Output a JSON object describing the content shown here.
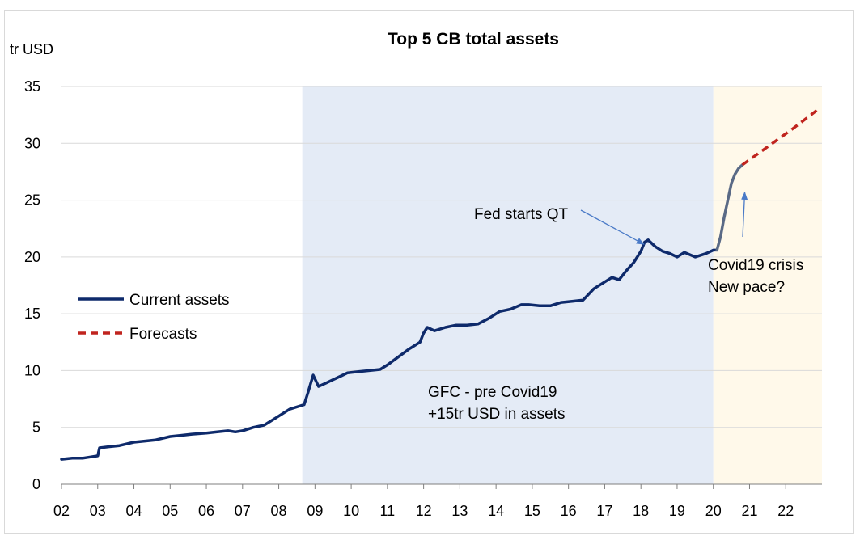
{
  "chart_data": {
    "type": "line",
    "title": "Top 5 CB total assets",
    "ylabel": "tr USD",
    "xlabel": "",
    "ylim": [
      0,
      35
    ],
    "yticks": [
      0,
      5,
      10,
      15,
      20,
      25,
      30,
      35
    ],
    "xlim": [
      2002,
      2023
    ],
    "xtick_labels": [
      "02",
      "03",
      "04",
      "05",
      "06",
      "07",
      "08",
      "09",
      "10",
      "11",
      "12",
      "13",
      "14",
      "15",
      "16",
      "17",
      "18",
      "19",
      "20",
      "21",
      "22"
    ],
    "grid": "horizontal",
    "legend_position": "left",
    "shaded_regions": [
      {
        "x_start": 2008.65,
        "x_end": 2020.0,
        "color": "#e4ebf6"
      },
      {
        "x_start": 2020.0,
        "x_end": 2023.0,
        "color": "#fff9ea"
      }
    ],
    "series": [
      {
        "name": "Current assets",
        "color": "#0e2a6b",
        "style": "solid",
        "points": [
          [
            2002.0,
            2.2
          ],
          [
            2002.3,
            2.3
          ],
          [
            2002.6,
            2.3
          ],
          [
            2002.8,
            2.4
          ],
          [
            2003.0,
            2.5
          ],
          [
            2003.05,
            3.2
          ],
          [
            2003.3,
            3.3
          ],
          [
            2003.6,
            3.4
          ],
          [
            2004.0,
            3.7
          ],
          [
            2004.3,
            3.8
          ],
          [
            2004.6,
            3.9
          ],
          [
            2005.0,
            4.2
          ],
          [
            2005.3,
            4.3
          ],
          [
            2005.6,
            4.4
          ],
          [
            2006.0,
            4.5
          ],
          [
            2006.3,
            4.6
          ],
          [
            2006.6,
            4.7
          ],
          [
            2006.8,
            4.6
          ],
          [
            2007.0,
            4.7
          ],
          [
            2007.3,
            5.0
          ],
          [
            2007.6,
            5.2
          ],
          [
            2008.0,
            6.0
          ],
          [
            2008.3,
            6.6
          ],
          [
            2008.6,
            6.9
          ],
          [
            2008.7,
            7.0
          ],
          [
            2008.8,
            8.0
          ],
          [
            2008.95,
            9.6
          ],
          [
            2009.1,
            8.6
          ],
          [
            2009.3,
            8.9
          ],
          [
            2009.5,
            9.2
          ],
          [
            2009.7,
            9.5
          ],
          [
            2009.9,
            9.8
          ],
          [
            2010.2,
            9.9
          ],
          [
            2010.5,
            10.0
          ],
          [
            2010.8,
            10.1
          ],
          [
            2011.0,
            10.5
          ],
          [
            2011.3,
            11.2
          ],
          [
            2011.6,
            11.9
          ],
          [
            2011.9,
            12.5
          ],
          [
            2012.0,
            13.3
          ],
          [
            2012.1,
            13.8
          ],
          [
            2012.3,
            13.5
          ],
          [
            2012.6,
            13.8
          ],
          [
            2012.9,
            14.0
          ],
          [
            2013.2,
            14.0
          ],
          [
            2013.5,
            14.1
          ],
          [
            2013.8,
            14.6
          ],
          [
            2014.1,
            15.2
          ],
          [
            2014.4,
            15.4
          ],
          [
            2014.7,
            15.8
          ],
          [
            2014.9,
            15.8
          ],
          [
            2015.2,
            15.7
          ],
          [
            2015.5,
            15.7
          ],
          [
            2015.8,
            16.0
          ],
          [
            2016.1,
            16.1
          ],
          [
            2016.4,
            16.2
          ],
          [
            2016.7,
            17.2
          ],
          [
            2017.0,
            17.8
          ],
          [
            2017.2,
            18.2
          ],
          [
            2017.4,
            18.0
          ],
          [
            2017.6,
            18.8
          ],
          [
            2017.8,
            19.5
          ],
          [
            2018.0,
            20.5
          ],
          [
            2018.1,
            21.3
          ],
          [
            2018.2,
            21.5
          ],
          [
            2018.4,
            20.9
          ],
          [
            2018.6,
            20.5
          ],
          [
            2018.8,
            20.3
          ],
          [
            2019.0,
            20.0
          ],
          [
            2019.2,
            20.4
          ],
          [
            2019.5,
            20.0
          ],
          [
            2019.8,
            20.3
          ],
          [
            2020.0,
            20.6
          ],
          [
            2020.1,
            20.6
          ]
        ]
      },
      {
        "name": "",
        "color": "#5a6a86",
        "style": "solid",
        "points": [
          [
            2020.1,
            20.6
          ],
          [
            2020.2,
            21.8
          ],
          [
            2020.3,
            23.5
          ],
          [
            2020.4,
            25.0
          ],
          [
            2020.5,
            26.5
          ],
          [
            2020.6,
            27.3
          ],
          [
            2020.7,
            27.8
          ],
          [
            2020.8,
            28.1
          ]
        ]
      },
      {
        "name": "Forecasts",
        "color": "#c0241e",
        "style": "dashed",
        "points": [
          [
            2020.8,
            28.1
          ],
          [
            2021.5,
            29.7
          ],
          [
            2022.2,
            31.3
          ],
          [
            2022.9,
            33.0
          ]
        ]
      }
    ],
    "annotations": [
      {
        "text": "Fed starts QT",
        "arrow_to": [
          2018.15,
          21.4
        ]
      },
      {
        "text_lines": [
          "Covid19 crisis",
          "New pace?"
        ],
        "arrow_to": [
          2020.8,
          25.9
        ]
      },
      {
        "text_lines": [
          "GFC - pre Covid19",
          "+15tr USD in assets"
        ]
      }
    ]
  }
}
